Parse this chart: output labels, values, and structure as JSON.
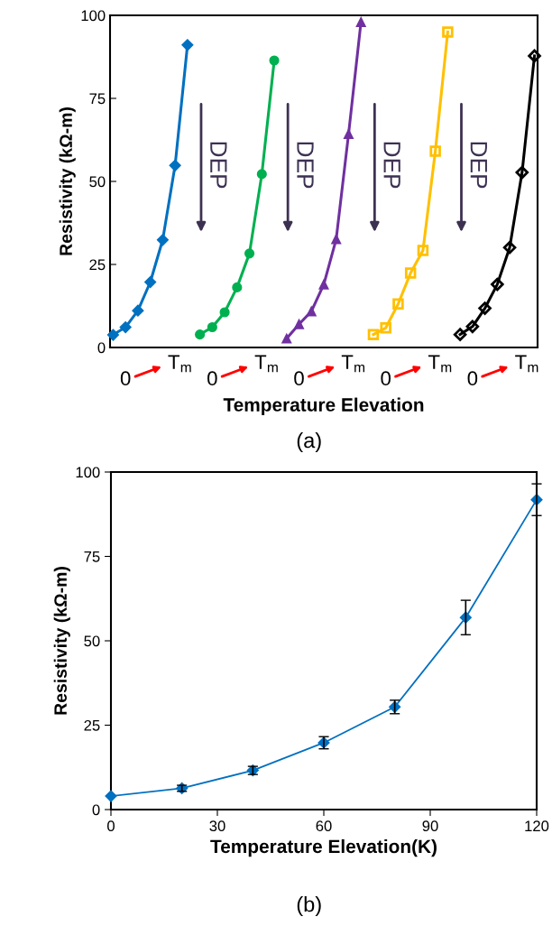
{
  "chart_data": [
    {
      "type": "line",
      "xlabel": "Temperature Elevation",
      "ylabel": "Resistivity (kΩ-m)",
      "ylim": [
        0,
        100
      ],
      "yticks": [
        0,
        25,
        50,
        75,
        100
      ],
      "grid": false,
      "tick_labels": "y",
      "categories": [
        null,
        null,
        null,
        null,
        null,
        null,
        null,
        null,
        null,
        null,
        null,
        null,
        null,
        null,
        null,
        null,
        null,
        null,
        null,
        null,
        null,
        null,
        null,
        null,
        null,
        null,
        null,
        null,
        null,
        null,
        null,
        null,
        null,
        null,
        null
      ],
      "series": [
        {
          "color": "#0070c0",
          "marker": "diamond",
          "values": [
            3.8,
            6.1,
            11.1,
            19.7,
            32.4,
            54.8,
            91.1,
            null,
            null,
            null,
            null,
            null,
            null,
            null,
            null,
            null,
            null,
            null,
            null,
            null,
            null,
            null,
            null,
            null,
            null,
            null,
            null,
            null,
            null,
            null,
            null,
            null,
            null,
            null,
            null
          ]
        },
        {
          "color": "#00b050",
          "marker": "circle",
          "values": [
            null,
            null,
            null,
            null,
            null,
            null,
            null,
            3.9,
            6.1,
            10.6,
            18.1,
            28.3,
            52.2,
            86.4,
            null,
            null,
            null,
            null,
            null,
            null,
            null,
            null,
            null,
            null,
            null,
            null,
            null,
            null,
            null,
            null,
            null,
            null,
            null,
            null,
            null
          ]
        },
        {
          "color": "#7030a0",
          "marker": "triangle",
          "values": [
            null,
            null,
            null,
            null,
            null,
            null,
            null,
            null,
            null,
            null,
            null,
            null,
            null,
            null,
            2.7,
            7.0,
            10.9,
            19.0,
            32.6,
            64.3,
            98.0,
            null,
            null,
            null,
            null,
            null,
            null,
            null,
            null,
            null,
            null,
            null,
            null,
            null,
            null
          ]
        },
        {
          "color": "#ffc000",
          "marker": "square",
          "values": [
            null,
            null,
            null,
            null,
            null,
            null,
            null,
            null,
            null,
            null,
            null,
            null,
            null,
            null,
            null,
            null,
            null,
            null,
            null,
            null,
            null,
            3.9,
            5.9,
            13.1,
            22.4,
            29.2,
            59.1,
            95.0,
            null,
            null,
            null,
            null,
            null,
            null,
            null
          ]
        },
        {
          "color": "#000000",
          "marker": "diamond",
          "values": [
            null,
            null,
            null,
            null,
            null,
            null,
            null,
            null,
            null,
            null,
            null,
            null,
            null,
            null,
            null,
            null,
            null,
            null,
            null,
            null,
            null,
            null,
            null,
            null,
            null,
            null,
            null,
            null,
            3.9,
            6.3,
            11.8,
            19.0,
            30.1,
            52.7,
            87.8
          ]
        }
      ],
      "annotations": [
        "0",
        "T$_{m}$",
        "0",
        "T$_{m}$",
        "0",
        "T$_{m}$",
        "0",
        "T$_{m}$",
        "0",
        "T$_{m}$",
        "DEP",
        "DEP",
        "DEP",
        "DEP",
        "(a)"
      ]
    },
    {
      "type": "line",
      "xlabel": "Temperature Elevation(K)",
      "ylabel": "Resistivity (kΩ-m)",
      "xlim": [
        0,
        120
      ],
      "xticks": [
        0,
        30,
        60,
        90,
        120
      ],
      "ylim": [
        0,
        100
      ],
      "yticks": [
        0,
        25,
        50,
        75,
        100
      ],
      "grid": false,
      "series": [
        {
          "color": "#0070c0",
          "marker": "diamond",
          "x": [
            0,
            20,
            40,
            60,
            80,
            100,
            120
          ],
          "values": [
            4.0,
            6.3,
            11.6,
            19.8,
            30.4,
            56.9,
            91.8
          ],
          "errors": [
            null,
            0.9,
            1.2,
            1.8,
            2.0,
            5.1,
            4.7
          ]
        }
      ],
      "annotations": [
        "(b)"
      ]
    }
  ]
}
